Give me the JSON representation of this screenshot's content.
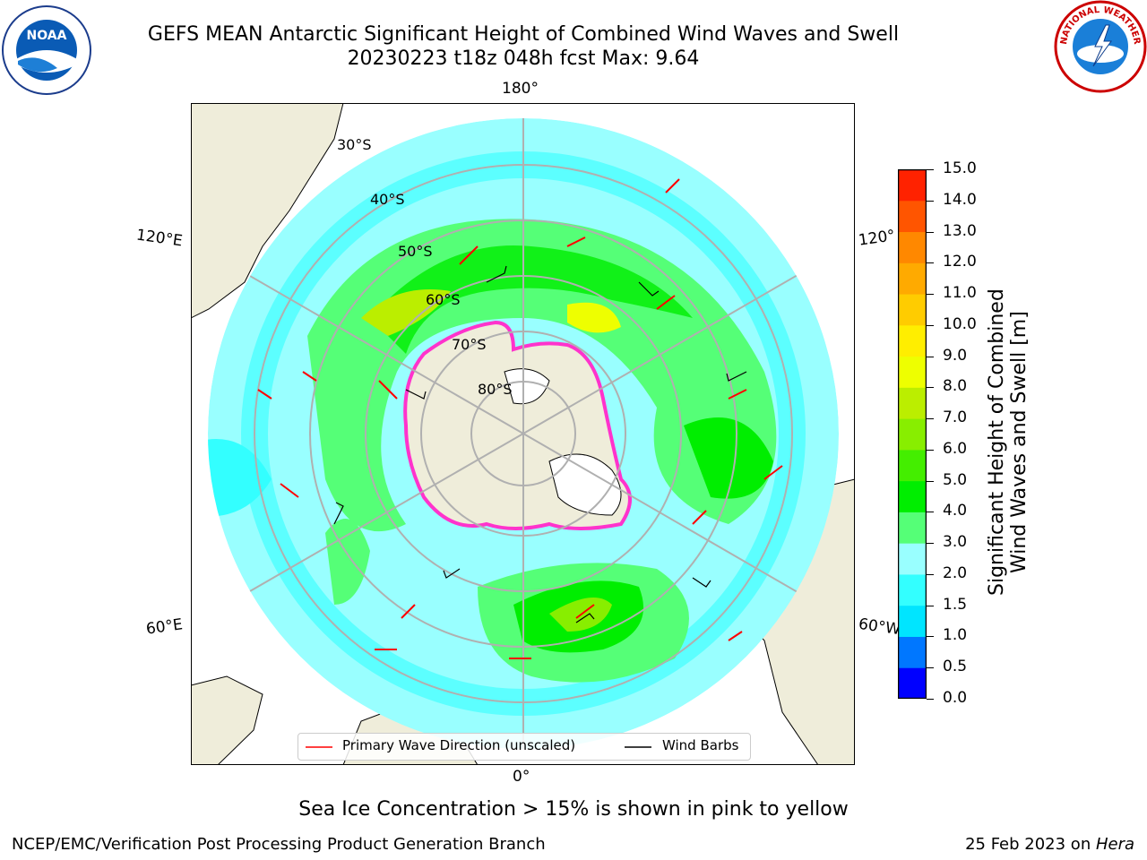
{
  "header": {
    "title_line1": "GEFS MEAN Antarctic Significant Height of Combined Wind Waves and Swell",
    "title_line2": "20230223 t18z 048h fcst   Max: 9.64"
  },
  "logos": {
    "left": {
      "icon": "noaa-logo",
      "text": "NOAA"
    },
    "right": {
      "icon": "nws-logo",
      "text": "NATIONAL WEATHER SERVICE"
    }
  },
  "map": {
    "projection": "south-polar-stereographic",
    "lon_labels": {
      "top": "180°",
      "bottom": "0°",
      "left_top": "120°E",
      "left_bottom": "60°E",
      "right_top": "120°",
      "right_bottom": "60°W"
    },
    "lat_labels": [
      "30°S",
      "40°S",
      "50°S",
      "60°S",
      "70°S",
      "80°S"
    ],
    "colors": {
      "land": "#efedda",
      "ice_edge": "#ff33cc",
      "wave_arrow": "#ff0000",
      "wind_barb": "#000000"
    },
    "legend": {
      "wave_direction": "Primary Wave Direction (unscaled)",
      "wind_barbs": "Wind Barbs"
    }
  },
  "colorbar": {
    "label_line1": "Significant Height of Combined",
    "label_line2": "Wind Waves and Swell [m]",
    "ticks": [
      "0.0",
      "0.5",
      "1.0",
      "1.5",
      "2.0",
      "3.0",
      "4.0",
      "5.0",
      "6.0",
      "7.0",
      "8.0",
      "9.0",
      "10.0",
      "11.0",
      "12.0",
      "13.0",
      "14.0",
      "15.0"
    ],
    "colors": [
      "#0000ff",
      "#0077ff",
      "#00e5ff",
      "#33ffff",
      "#99ffff",
      "#55ff77",
      "#00ee00",
      "#44ee00",
      "#88ee00",
      "#bbee00",
      "#eeff00",
      "#ffee00",
      "#ffcc00",
      "#ffaa00",
      "#ff8800",
      "#ff5500",
      "#ff2200"
    ]
  },
  "note": "Sea Ice Concentration > 15% is shown in pink to yellow",
  "footer": {
    "left": "NCEP/EMC/Verification Post Processing Product Generation Branch",
    "right_date": "25 Feb 2023 on ",
    "right_machine": "Hera"
  }
}
